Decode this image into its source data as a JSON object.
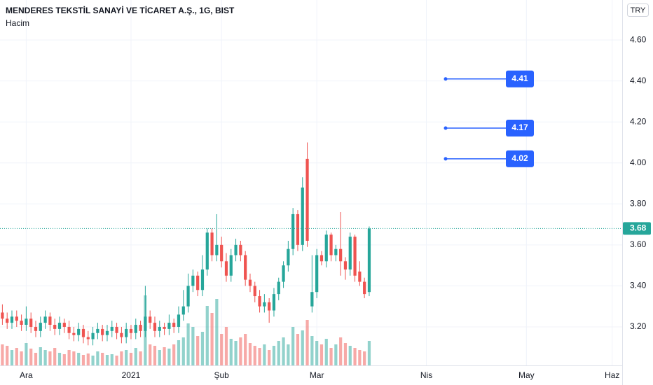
{
  "chart_data": {
    "type": "candlestick",
    "title": "MENDERES TEKSTİL SANAYİ VE TİCARET A.Ş., 1G, BIST",
    "volume_label": "Hacim",
    "currency": "TRY",
    "open": [
      3.27,
      3.24,
      3.22,
      3.25,
      3.23,
      3.21,
      3.24,
      3.2,
      3.18,
      3.22,
      3.25,
      3.21,
      3.19,
      3.22,
      3.2,
      3.17,
      3.16,
      3.19,
      3.15,
      3.14,
      3.17,
      3.19,
      3.16,
      3.18,
      3.2,
      3.17,
      3.15,
      3.19,
      3.17,
      3.21,
      3.18,
      3.25,
      3.22,
      3.18,
      3.2,
      3.19,
      3.22,
      3.2,
      3.26,
      3.3,
      3.4,
      3.45,
      3.38,
      3.48,
      3.66,
      3.55,
      3.6,
      3.52,
      3.45,
      3.55,
      3.6,
      3.55,
      3.43,
      3.4,
      3.35,
      3.3,
      3.32,
      3.28,
      3.36,
      3.42,
      3.5,
      3.58,
      3.75,
      3.6,
      4.02,
      3.3,
      3.37,
      3.55,
      3.52,
      3.65,
      3.55,
      3.58,
      3.52,
      3.48,
      3.64,
      3.47,
      3.42,
      3.37
    ],
    "high": [
      3.31,
      3.27,
      3.28,
      3.28,
      3.26,
      3.3,
      3.27,
      3.23,
      3.25,
      3.28,
      3.27,
      3.24,
      3.25,
      3.24,
      3.23,
      3.2,
      3.22,
      3.21,
      3.18,
      3.2,
      3.22,
      3.21,
      3.21,
      3.23,
      3.22,
      3.2,
      3.22,
      3.21,
      3.24,
      3.23,
      3.4,
      3.28,
      3.25,
      3.23,
      3.22,
      3.26,
      3.24,
      3.3,
      3.38,
      3.46,
      3.48,
      3.47,
      3.55,
      3.68,
      3.68,
      3.75,
      3.64,
      3.56,
      3.58,
      3.63,
      3.62,
      3.57,
      3.46,
      3.42,
      3.38,
      3.36,
      3.34,
      3.39,
      3.44,
      3.52,
      3.62,
      3.78,
      3.77,
      3.93,
      4.1,
      3.55,
      3.58,
      3.57,
      3.67,
      3.66,
      3.6,
      3.76,
      3.54,
      3.66,
      3.65,
      3.52,
      3.44,
      3.69
    ],
    "low": [
      3.21,
      3.19,
      3.19,
      3.2,
      3.18,
      3.18,
      3.17,
      3.15,
      3.15,
      3.19,
      3.18,
      3.16,
      3.16,
      3.17,
      3.14,
      3.13,
      3.13,
      3.12,
      3.11,
      3.11,
      3.14,
      3.13,
      3.13,
      3.15,
      3.14,
      3.12,
      3.12,
      3.14,
      3.14,
      3.15,
      3.15,
      3.19,
      3.15,
      3.15,
      3.16,
      3.16,
      3.17,
      3.17,
      3.23,
      3.27,
      3.37,
      3.35,
      3.35,
      3.45,
      3.52,
      3.52,
      3.49,
      3.42,
      3.42,
      3.52,
      3.52,
      3.4,
      3.37,
      3.32,
      3.27,
      3.27,
      3.22,
      3.25,
      3.33,
      3.39,
      3.47,
      3.55,
      3.57,
      3.57,
      3.59,
      3.27,
      3.34,
      3.5,
      3.49,
      3.52,
      3.52,
      3.45,
      3.43,
      3.45,
      3.42,
      3.4,
      3.34,
      3.35
    ],
    "close": [
      3.24,
      3.22,
      3.25,
      3.23,
      3.21,
      3.24,
      3.2,
      3.18,
      3.22,
      3.25,
      3.21,
      3.19,
      3.22,
      3.2,
      3.17,
      3.16,
      3.19,
      3.15,
      3.14,
      3.17,
      3.19,
      3.16,
      3.18,
      3.2,
      3.17,
      3.15,
      3.19,
      3.17,
      3.21,
      3.18,
      3.25,
      3.22,
      3.18,
      3.2,
      3.19,
      3.22,
      3.2,
      3.26,
      3.3,
      3.4,
      3.45,
      3.38,
      3.48,
      3.66,
      3.55,
      3.6,
      3.52,
      3.45,
      3.55,
      3.6,
      3.55,
      3.43,
      3.4,
      3.35,
      3.3,
      3.32,
      3.28,
      3.36,
      3.42,
      3.5,
      3.58,
      3.75,
      3.6,
      3.88,
      3.62,
      3.37,
      3.55,
      3.52,
      3.65,
      3.55,
      3.58,
      3.52,
      3.48,
      3.64,
      3.45,
      3.42,
      3.36,
      3.68
    ],
    "volume": [
      30,
      28,
      22,
      25,
      20,
      32,
      24,
      18,
      26,
      22,
      20,
      25,
      18,
      16,
      22,
      20,
      18,
      15,
      17,
      14,
      20,
      18,
      15,
      16,
      14,
      20,
      22,
      18,
      25,
      20,
      100,
      30,
      28,
      22,
      26,
      24,
      30,
      36,
      40,
      60,
      55,
      42,
      48,
      85,
      75,
      95,
      45,
      55,
      38,
      35,
      40,
      45,
      32,
      28,
      25,
      30,
      22,
      28,
      35,
      40,
      30,
      55,
      45,
      50,
      65,
      42,
      35,
      30,
      38,
      25,
      30,
      40,
      32,
      28,
      25,
      22,
      20,
      35
    ],
    "up_color": "#26a69a",
    "down_color": "#ef5350",
    "price_levels": [
      4.41,
      4.17,
      4.02
    ],
    "level_color": "#2962ff",
    "xlim": [
      -0.5,
      130.1
    ],
    "xticks": [
      {
        "value": 5,
        "label": "Ara"
      },
      {
        "value": 27,
        "label": "2021"
      },
      {
        "value": 46,
        "label": "Şub"
      },
      {
        "value": 66,
        "label": "Mar"
      },
      {
        "value": 89,
        "label": "Nis"
      },
      {
        "value": 110,
        "label": "May"
      },
      {
        "value": 128,
        "label": "Haz"
      }
    ],
    "ylim": [
      3.012,
      4.795
    ],
    "yticks": [
      {
        "value": 3.2,
        "label": "3.20"
      },
      {
        "value": 3.4,
        "label": "3.40"
      },
      {
        "value": 3.6,
        "label": "3.60"
      },
      {
        "value": 3.8,
        "label": "3.80"
      },
      {
        "value": 4.0,
        "label": "4.00"
      },
      {
        "value": 4.2,
        "label": "4.20"
      },
      {
        "value": 4.4,
        "label": "4.40"
      },
      {
        "value": 4.6,
        "label": "4.60"
      }
    ],
    "grid": true
  }
}
